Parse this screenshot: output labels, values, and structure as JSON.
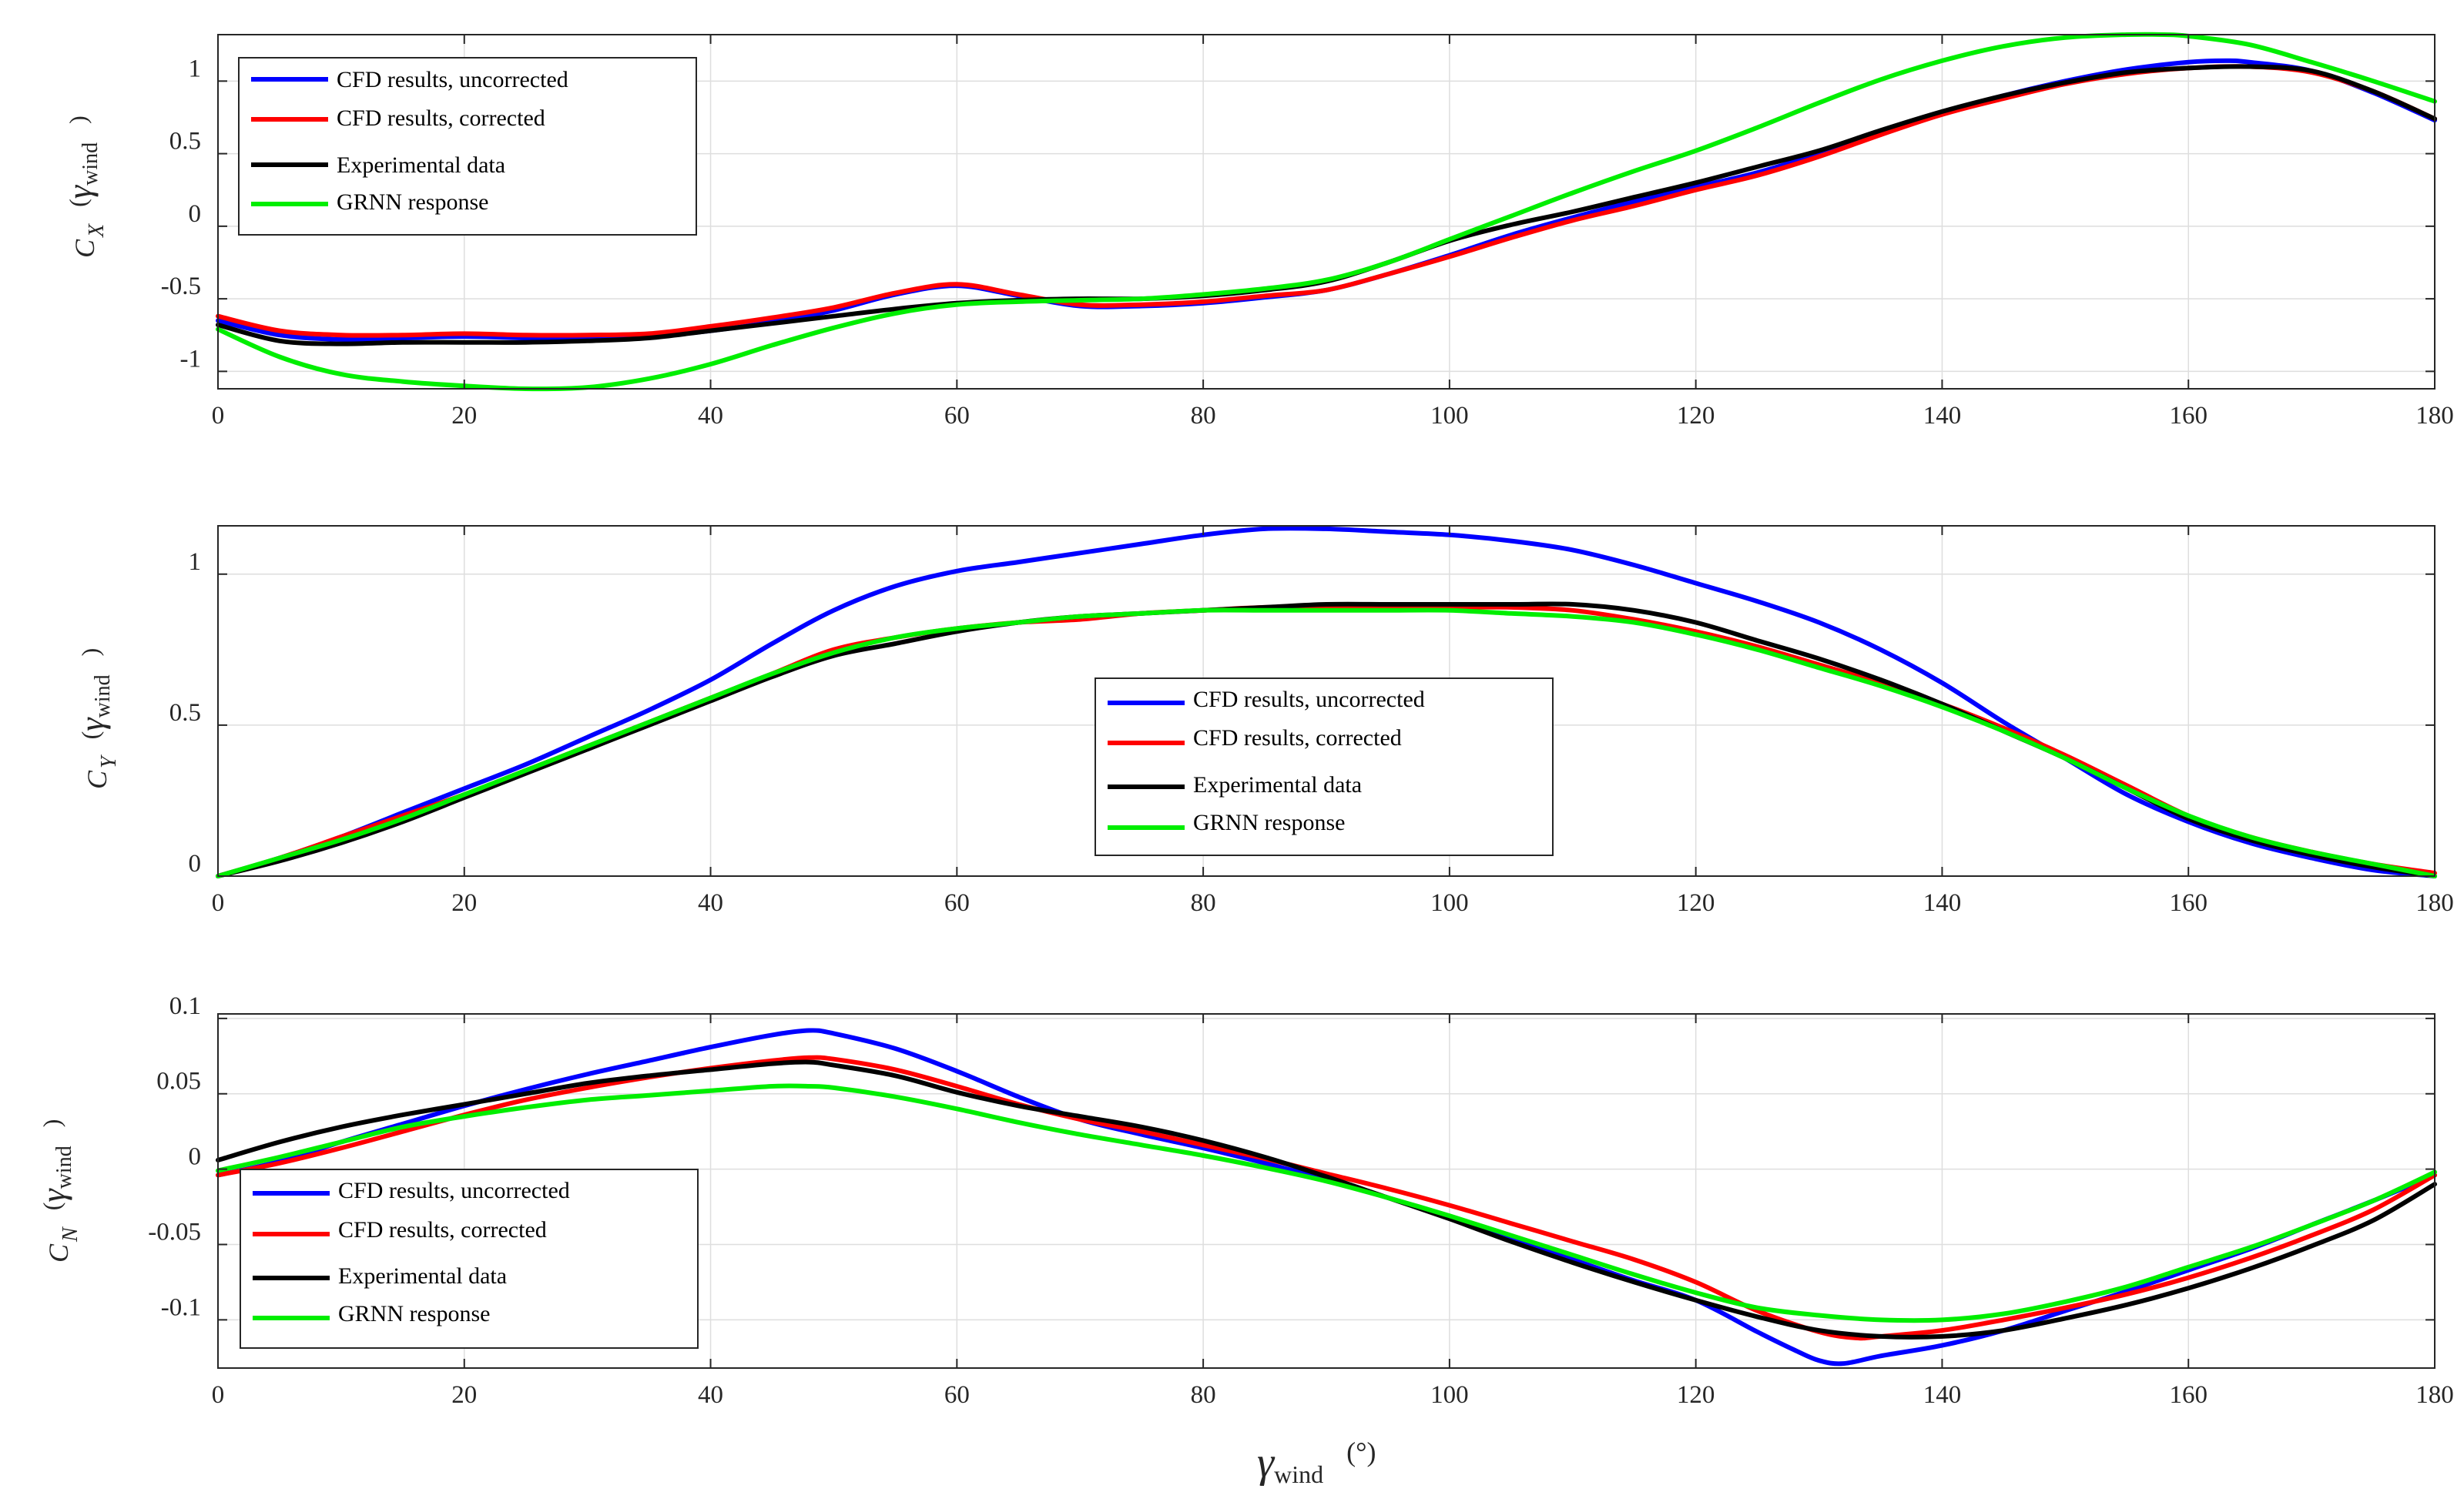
{
  "chart_data": [
    {
      "type": "line",
      "id": "cx",
      "ylabel": {
        "main": "C",
        "sub": "X",
        "arg": "γ",
        "argsub": "wind"
      },
      "xlim": [
        0,
        180
      ],
      "ylim": [
        -1.12,
        1.32
      ],
      "xticks": [
        0,
        20,
        40,
        60,
        80,
        100,
        120,
        140,
        160,
        180
      ],
      "yticks": [
        -1,
        -0.5,
        0,
        0.5,
        1
      ],
      "ytick_labels": [
        "-1",
        "-0.5",
        "0",
        "0.5",
        "1"
      ],
      "legend": {
        "position": "top-left"
      },
      "series": [
        {
          "name": "CFD results, uncorrected",
          "color": "#0000ff",
          "x": [
            0,
            5,
            10,
            15,
            20,
            25,
            30,
            35,
            40,
            45,
            50,
            55,
            60,
            65,
            70,
            75,
            80,
            85,
            90,
            95,
            100,
            105,
            110,
            115,
            120,
            125,
            130,
            135,
            140,
            145,
            150,
            155,
            160,
            163,
            165,
            170,
            175,
            180
          ],
          "y": [
            -0.65,
            -0.75,
            -0.78,
            -0.77,
            -0.76,
            -0.77,
            -0.78,
            -0.76,
            -0.72,
            -0.66,
            -0.58,
            -0.47,
            -0.41,
            -0.48,
            -0.55,
            -0.55,
            -0.53,
            -0.49,
            -0.44,
            -0.33,
            -0.2,
            -0.06,
            0.06,
            0.17,
            0.27,
            0.37,
            0.5,
            0.64,
            0.78,
            0.9,
            1.0,
            1.08,
            1.13,
            1.14,
            1.13,
            1.07,
            0.92,
            0.73
          ]
        },
        {
          "name": "CFD results, corrected",
          "color": "#ff0000",
          "x": [
            0,
            5,
            10,
            15,
            20,
            25,
            30,
            35,
            40,
            45,
            50,
            55,
            60,
            65,
            70,
            75,
            80,
            85,
            90,
            95,
            100,
            105,
            110,
            115,
            120,
            125,
            130,
            135,
            140,
            145,
            150,
            155,
            160,
            165,
            170,
            175,
            180
          ],
          "y": [
            -0.62,
            -0.72,
            -0.75,
            -0.75,
            -0.74,
            -0.75,
            -0.75,
            -0.74,
            -0.69,
            -0.63,
            -0.56,
            -0.46,
            -0.4,
            -0.47,
            -0.54,
            -0.54,
            -0.52,
            -0.48,
            -0.44,
            -0.33,
            -0.21,
            -0.08,
            0.04,
            0.14,
            0.25,
            0.35,
            0.48,
            0.63,
            0.77,
            0.88,
            0.98,
            1.05,
            1.09,
            1.1,
            1.06,
            0.93,
            0.74
          ]
        },
        {
          "name": "Experimental data",
          "color": "#000000",
          "x": [
            0,
            5,
            10,
            15,
            20,
            25,
            30,
            35,
            40,
            45,
            50,
            55,
            60,
            65,
            70,
            75,
            80,
            85,
            90,
            95,
            100,
            105,
            110,
            115,
            120,
            125,
            130,
            135,
            140,
            145,
            150,
            155,
            160,
            165,
            170,
            175,
            180
          ],
          "y": [
            -0.68,
            -0.79,
            -0.81,
            -0.8,
            -0.8,
            -0.8,
            -0.79,
            -0.77,
            -0.72,
            -0.67,
            -0.62,
            -0.57,
            -0.53,
            -0.51,
            -0.5,
            -0.5,
            -0.48,
            -0.44,
            -0.38,
            -0.25,
            -0.1,
            0.01,
            0.1,
            0.2,
            0.3,
            0.41,
            0.52,
            0.66,
            0.79,
            0.9,
            0.99,
            1.06,
            1.09,
            1.1,
            1.07,
            0.93,
            0.74
          ]
        },
        {
          "name": "GRNN response",
          "color": "#00ee00",
          "x": [
            0,
            5,
            10,
            15,
            20,
            25,
            30,
            35,
            40,
            45,
            50,
            55,
            60,
            65,
            70,
            75,
            80,
            85,
            90,
            95,
            100,
            105,
            110,
            115,
            120,
            125,
            130,
            135,
            140,
            145,
            150,
            155,
            158,
            160,
            165,
            170,
            175,
            180
          ],
          "y": [
            -0.71,
            -0.9,
            -1.02,
            -1.07,
            -1.1,
            -1.12,
            -1.11,
            -1.05,
            -0.95,
            -0.82,
            -0.7,
            -0.6,
            -0.54,
            -0.52,
            -0.51,
            -0.5,
            -0.47,
            -0.43,
            -0.37,
            -0.25,
            -0.09,
            0.07,
            0.23,
            0.38,
            0.52,
            0.68,
            0.85,
            1.01,
            1.14,
            1.24,
            1.3,
            1.32,
            1.32,
            1.31,
            1.25,
            1.13,
            1.0,
            0.86
          ]
        }
      ]
    },
    {
      "type": "line",
      "id": "cy",
      "ylabel": {
        "main": "C",
        "sub": "Y",
        "arg": "γ",
        "argsub": "wind"
      },
      "xlim": [
        0,
        180
      ],
      "ylim": [
        0,
        1.16
      ],
      "xticks": [
        0,
        20,
        40,
        60,
        80,
        100,
        120,
        140,
        160,
        180
      ],
      "yticks": [
        0,
        0.5,
        1
      ],
      "ytick_labels": [
        "0",
        "0.5",
        "1"
      ],
      "legend": {
        "position": "center"
      },
      "series": [
        {
          "name": "CFD results, uncorrected",
          "color": "#0000ff",
          "x": [
            0,
            5,
            10,
            15,
            20,
            25,
            30,
            35,
            40,
            45,
            50,
            55,
            60,
            65,
            70,
            75,
            80,
            85,
            90,
            95,
            100,
            105,
            110,
            115,
            120,
            125,
            130,
            135,
            140,
            145,
            150,
            155,
            160,
            165,
            170,
            175,
            180
          ],
          "y": [
            0,
            0.06,
            0.13,
            0.21,
            0.29,
            0.37,
            0.46,
            0.55,
            0.65,
            0.77,
            0.88,
            0.96,
            1.01,
            1.04,
            1.07,
            1.1,
            1.13,
            1.15,
            1.15,
            1.14,
            1.13,
            1.11,
            1.08,
            1.03,
            0.97,
            0.91,
            0.84,
            0.75,
            0.64,
            0.51,
            0.39,
            0.27,
            0.18,
            0.11,
            0.06,
            0.02,
            0
          ]
        },
        {
          "name": "CFD results, corrected",
          "color": "#ff0000",
          "x": [
            0,
            5,
            10,
            15,
            20,
            25,
            30,
            35,
            40,
            45,
            50,
            55,
            60,
            65,
            70,
            75,
            80,
            85,
            90,
            95,
            100,
            105,
            110,
            115,
            120,
            125,
            130,
            135,
            140,
            145,
            150,
            155,
            160,
            165,
            170,
            175,
            180
          ],
          "y": [
            0,
            0.06,
            0.13,
            0.2,
            0.27,
            0.35,
            0.43,
            0.51,
            0.59,
            0.67,
            0.75,
            0.79,
            0.82,
            0.84,
            0.85,
            0.87,
            0.88,
            0.89,
            0.89,
            0.89,
            0.89,
            0.89,
            0.88,
            0.85,
            0.81,
            0.76,
            0.7,
            0.64,
            0.57,
            0.49,
            0.4,
            0.3,
            0.2,
            0.13,
            0.08,
            0.04,
            0.01
          ]
        },
        {
          "name": "Experimental data",
          "color": "#000000",
          "x": [
            0,
            5,
            10,
            15,
            20,
            25,
            30,
            35,
            40,
            45,
            50,
            55,
            60,
            65,
            70,
            75,
            80,
            85,
            90,
            95,
            100,
            105,
            110,
            115,
            120,
            125,
            130,
            135,
            140,
            145,
            150,
            155,
            160,
            165,
            170,
            175,
            180
          ],
          "y": [
            0,
            0.05,
            0.11,
            0.18,
            0.26,
            0.34,
            0.42,
            0.5,
            0.58,
            0.66,
            0.73,
            0.77,
            0.81,
            0.84,
            0.86,
            0.87,
            0.88,
            0.89,
            0.9,
            0.9,
            0.9,
            0.9,
            0.9,
            0.88,
            0.84,
            0.78,
            0.72,
            0.65,
            0.57,
            0.48,
            0.39,
            0.29,
            0.19,
            0.12,
            0.07,
            0.03,
            0
          ]
        },
        {
          "name": "GRNN response",
          "color": "#00ee00",
          "x": [
            0,
            5,
            10,
            15,
            20,
            25,
            30,
            35,
            40,
            45,
            50,
            55,
            60,
            65,
            70,
            75,
            80,
            85,
            90,
            95,
            100,
            105,
            110,
            115,
            120,
            125,
            130,
            135,
            140,
            145,
            150,
            155,
            160,
            165,
            170,
            175,
            180
          ],
          "y": [
            0,
            0.06,
            0.12,
            0.19,
            0.27,
            0.35,
            0.43,
            0.51,
            0.59,
            0.67,
            0.74,
            0.79,
            0.82,
            0.84,
            0.86,
            0.87,
            0.88,
            0.88,
            0.88,
            0.88,
            0.88,
            0.87,
            0.86,
            0.84,
            0.8,
            0.75,
            0.69,
            0.63,
            0.56,
            0.48,
            0.39,
            0.29,
            0.2,
            0.13,
            0.08,
            0.04,
            0
          ]
        }
      ]
    },
    {
      "type": "line",
      "id": "cn",
      "ylabel": {
        "main": "C",
        "sub": "N",
        "arg": "γ",
        "argsub": "wind"
      },
      "xlabel": {
        "main": "γ",
        "sub": "wind",
        "unit": "(°)"
      },
      "xlim": [
        0,
        180
      ],
      "ylim": [
        -0.132,
        0.103
      ],
      "xticks": [
        0,
        20,
        40,
        60,
        80,
        100,
        120,
        140,
        160,
        180
      ],
      "yticks": [
        -0.1,
        -0.05,
        0,
        0.05,
        0.1
      ],
      "ytick_labels": [
        "-0.1",
        "-0.05",
        "0",
        "0.05",
        "0.1"
      ],
      "legend": {
        "position": "bottom-left"
      },
      "series": [
        {
          "name": "CFD results, uncorrected",
          "color": "#0000ff",
          "x": [
            0,
            5,
            10,
            15,
            20,
            25,
            30,
            35,
            40,
            45,
            48,
            50,
            55,
            60,
            65,
            70,
            75,
            80,
            85,
            90,
            95,
            100,
            105,
            110,
            115,
            120,
            125,
            128,
            130,
            132,
            135,
            140,
            145,
            150,
            155,
            160,
            165,
            170,
            175,
            180
          ],
          "y": [
            -0.004,
            0.005,
            0.018,
            0.03,
            0.042,
            0.053,
            0.063,
            0.072,
            0.081,
            0.089,
            0.092,
            0.09,
            0.08,
            0.065,
            0.048,
            0.033,
            0.023,
            0.014,
            0.004,
            -0.007,
            -0.019,
            -0.032,
            -0.046,
            -0.06,
            -0.074,
            -0.087,
            -0.108,
            -0.12,
            -0.127,
            -0.129,
            -0.124,
            -0.117,
            -0.107,
            -0.094,
            -0.081,
            -0.067,
            -0.053,
            -0.037,
            -0.021,
            -0.004
          ]
        },
        {
          "name": "CFD results, corrected",
          "color": "#ff0000",
          "x": [
            0,
            5,
            10,
            15,
            20,
            25,
            30,
            35,
            40,
            45,
            48,
            50,
            55,
            60,
            65,
            70,
            75,
            80,
            85,
            90,
            95,
            100,
            105,
            110,
            115,
            120,
            125,
            130,
            133,
            135,
            140,
            145,
            150,
            155,
            160,
            165,
            170,
            175,
            180
          ],
          "y": [
            -0.004,
            0.004,
            0.014,
            0.025,
            0.036,
            0.046,
            0.054,
            0.061,
            0.067,
            0.072,
            0.074,
            0.073,
            0.066,
            0.055,
            0.043,
            0.033,
            0.025,
            0.016,
            0.007,
            -0.003,
            -0.013,
            -0.024,
            -0.036,
            -0.048,
            -0.06,
            -0.075,
            -0.094,
            -0.108,
            -0.112,
            -0.111,
            -0.107,
            -0.1,
            -0.092,
            -0.083,
            -0.072,
            -0.059,
            -0.044,
            -0.027,
            -0.004
          ]
        },
        {
          "name": "Experimental data",
          "color": "#000000",
          "x": [
            0,
            5,
            10,
            15,
            20,
            25,
            30,
            35,
            40,
            45,
            48,
            50,
            55,
            60,
            65,
            70,
            75,
            80,
            85,
            90,
            95,
            100,
            105,
            110,
            115,
            120,
            125,
            130,
            135,
            140,
            145,
            150,
            155,
            160,
            165,
            170,
            175,
            180
          ],
          "y": [
            0.006,
            0.018,
            0.028,
            0.036,
            0.043,
            0.05,
            0.057,
            0.062,
            0.066,
            0.07,
            0.071,
            0.069,
            0.062,
            0.051,
            0.042,
            0.035,
            0.028,
            0.019,
            0.008,
            -0.005,
            -0.019,
            -0.033,
            -0.048,
            -0.062,
            -0.075,
            -0.087,
            -0.098,
            -0.107,
            -0.111,
            -0.111,
            -0.107,
            -0.099,
            -0.09,
            -0.079,
            -0.066,
            -0.051,
            -0.034,
            -0.01
          ]
        },
        {
          "name": "GRNN response",
          "color": "#00ee00",
          "x": [
            0,
            5,
            10,
            15,
            20,
            25,
            30,
            35,
            40,
            45,
            48,
            50,
            55,
            60,
            65,
            70,
            75,
            80,
            85,
            90,
            95,
            100,
            105,
            110,
            115,
            120,
            125,
            130,
            135,
            140,
            145,
            150,
            155,
            160,
            165,
            170,
            175,
            180
          ],
          "y": [
            -0.001,
            0.008,
            0.018,
            0.028,
            0.035,
            0.041,
            0.046,
            0.049,
            0.052,
            0.055,
            0.055,
            0.054,
            0.048,
            0.04,
            0.031,
            0.023,
            0.016,
            0.009,
            0.001,
            -0.008,
            -0.019,
            -0.031,
            -0.044,
            -0.057,
            -0.07,
            -0.082,
            -0.092,
            -0.097,
            -0.1,
            -0.1,
            -0.096,
            -0.088,
            -0.078,
            -0.065,
            -0.052,
            -0.037,
            -0.021,
            -0.002
          ]
        }
      ]
    }
  ]
}
